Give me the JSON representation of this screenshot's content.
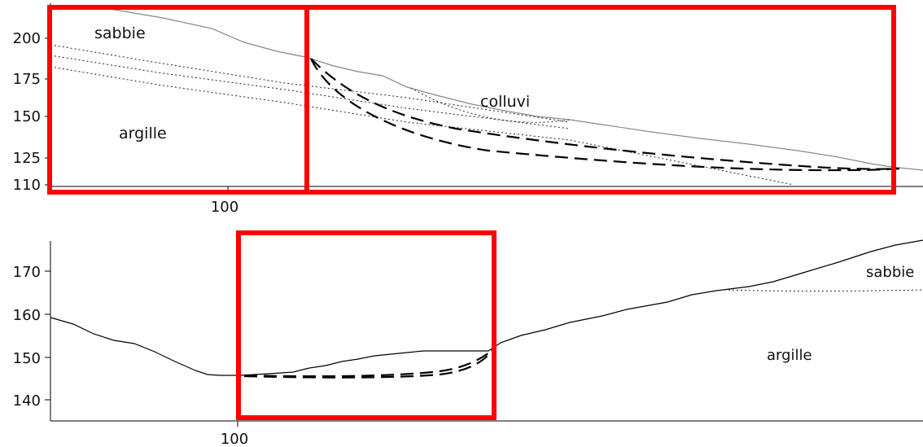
{
  "top_panel": {
    "y_ticks": [
      "200",
      "175",
      "150",
      "125",
      "110"
    ],
    "x_tick": "100",
    "labels": {
      "sabbie": "sabbie",
      "argille": "argille",
      "colluvi": "colluvi"
    }
  },
  "bottom_panel": {
    "y_ticks": [
      "170",
      "160",
      "150",
      "140"
    ],
    "x_tick": "100",
    "labels": {
      "sabbie": "sabbie",
      "argille": "argille"
    }
  },
  "colors": {
    "highlight": "#ff0000",
    "line": "#000000",
    "terrain_top": "#888888"
  }
}
